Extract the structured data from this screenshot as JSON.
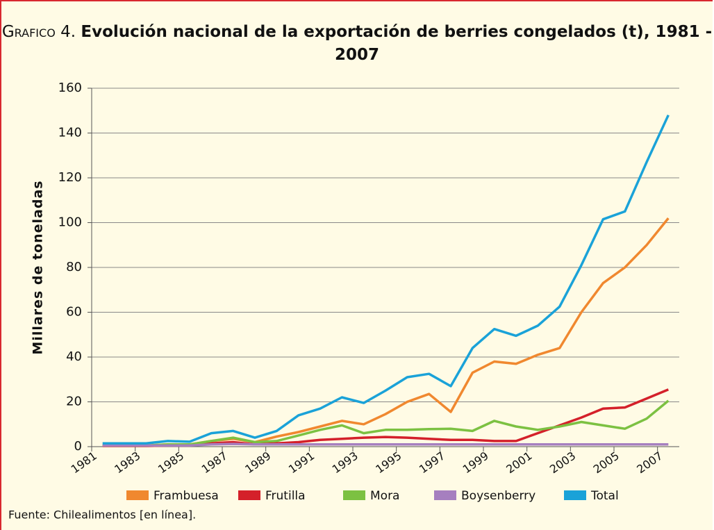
{
  "chart_data": {
    "type": "line",
    "title_prefix": "Grafico 4.",
    "title": "Evolución nacional de la exportación de berries congelados (t), 1981 - 2007",
    "y_label": "Millares de toneladas",
    "source": "Fuente: Chilealimentos [en línea].",
    "categories": [
      "1981",
      null,
      "1983",
      null,
      "1985",
      null,
      "1987",
      null,
      "1989",
      null,
      "1991",
      null,
      "1993",
      null,
      "1995",
      null,
      "1997",
      null,
      "1999",
      null,
      "2001",
      null,
      "2003",
      null,
      "2005",
      null,
      "2007"
    ],
    "series": [
      {
        "name": "Frambuesa",
        "color": "#f0882f",
        "values": [
          0.5,
          0.5,
          0.5,
          1,
          1,
          2.5,
          3.5,
          2,
          4.5,
          6.5,
          9,
          11.5,
          10,
          14.5,
          20,
          23.5,
          15.5,
          33,
          38,
          37,
          41,
          44,
          60,
          73,
          80,
          90,
          102
        ]
      },
      {
        "name": "Frutilla",
        "color": "#d4202a",
        "values": [
          0.3,
          0.3,
          0.3,
          0.5,
          0.5,
          1.5,
          2,
          1,
          1.5,
          2,
          3,
          3.5,
          4,
          4.3,
          4,
          3.5,
          3,
          3,
          2.5,
          2.5,
          6,
          9.5,
          13,
          17,
          17.5,
          21.5,
          25.5
        ]
      },
      {
        "name": "Mora",
        "color": "#7cc142",
        "values": [
          0.5,
          0.5,
          0.5,
          1,
          1,
          2.5,
          4,
          2,
          2.5,
          5,
          7.5,
          9.5,
          6,
          7.5,
          7.5,
          7.8,
          8,
          7,
          11.5,
          9,
          7.5,
          9,
          11,
          9.5,
          8,
          12.5,
          20.5
        ]
      },
      {
        "name": "Boysenberry",
        "color": "#a67fbf",
        "values": [
          0.5,
          0.5,
          0.5,
          0.5,
          0.5,
          1,
          1.2,
          1,
          1,
          1,
          1,
          1,
          1,
          1,
          1,
          1,
          1,
          1,
          1,
          1,
          1,
          1,
          1,
          1,
          1,
          1,
          1
        ]
      },
      {
        "name": "Total",
        "color": "#1aa2d8",
        "values": [
          1.5,
          1.5,
          1.5,
          2.5,
          2.2,
          6,
          7,
          4,
          7,
          14,
          17,
          22,
          19.5,
          25,
          31,
          32.5,
          27,
          44,
          52.5,
          49.5,
          54,
          62.5,
          81,
          101.5,
          105,
          127,
          148
        ]
      }
    ],
    "ylim": [
      0,
      160
    ],
    "yticks": [
      0,
      20,
      40,
      60,
      80,
      100,
      120,
      140,
      160
    ],
    "grid": true
  }
}
